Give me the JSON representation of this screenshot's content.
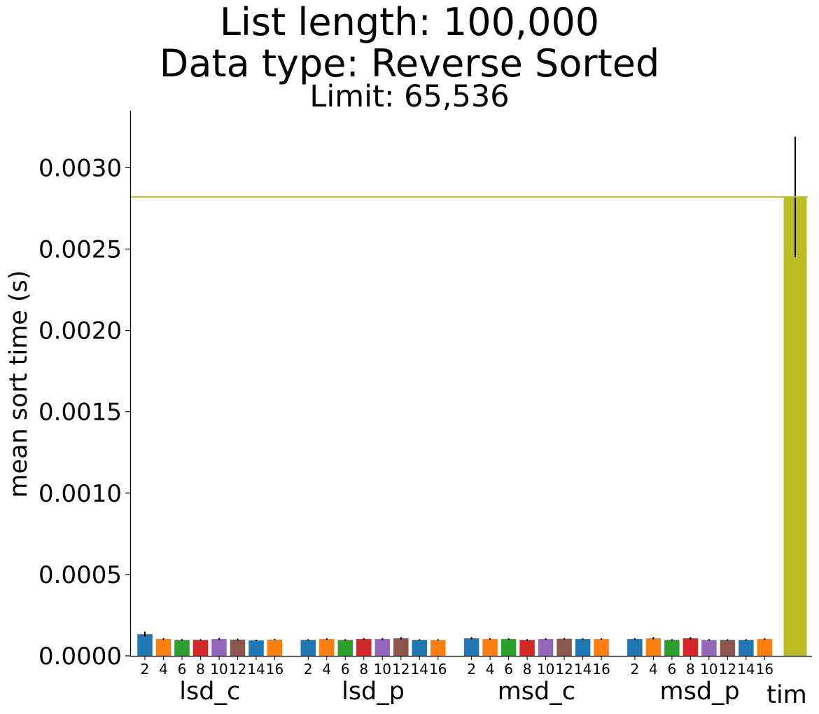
{
  "chart_data": {
    "type": "bar",
    "title": "List length: 100,000",
    "subtitle": "Data type: Reverse Sorted",
    "limit_label": "Limit: 65,536",
    "ylabel": "mean sort time (s)",
    "ylim": [
      0,
      0.00335
    ],
    "yticks": [
      0.0,
      0.0005,
      0.001,
      0.0015,
      0.002,
      0.0025,
      0.003
    ],
    "ytick_labels": [
      "0.0000",
      "0.0005",
      "0.0010",
      "0.0015",
      "0.0020",
      "0.0025",
      "0.0030"
    ],
    "palette": [
      "#1f77b4",
      "#ff7f0e",
      "#2ca02c",
      "#d62728",
      "#9467bd",
      "#8c564b"
    ],
    "groups": [
      {
        "name": "lsd_c",
        "categories": [
          "2",
          "4",
          "6",
          "8",
          "10",
          "12",
          "14",
          "16"
        ],
        "values": [
          0.000133,
          0.000103,
          9.8e-05,
          9.8e-05,
          0.000103,
          0.0001,
          9.5e-05,
          0.0001
        ],
        "errors": [
          1.5e-05,
          6e-06,
          4e-06,
          4e-06,
          6e-06,
          6e-06,
          4e-06,
          4e-06
        ]
      },
      {
        "name": "lsd_p",
        "categories": [
          "2",
          "4",
          "6",
          "8",
          "10",
          "12",
          "14",
          "16"
        ],
        "values": [
          9.8e-05,
          0.000103,
          9.8e-05,
          0.000103,
          0.000103,
          0.000108,
          9.8e-05,
          9.8e-05
        ],
        "errors": [
          4e-06,
          5e-06,
          4e-06,
          6e-06,
          6e-06,
          7e-06,
          4e-06,
          4e-06
        ]
      },
      {
        "name": "msd_c",
        "categories": [
          "2",
          "4",
          "6",
          "8",
          "10",
          "12",
          "14",
          "16"
        ],
        "values": [
          0.000108,
          0.000103,
          0.000103,
          9.8e-05,
          0.000103,
          0.000105,
          0.000103,
          0.000103
        ],
        "errors": [
          7e-06,
          5e-06,
          5e-06,
          4e-06,
          5e-06,
          4e-06,
          5e-06,
          5e-06
        ]
      },
      {
        "name": "msd_p",
        "categories": [
          "2",
          "4",
          "6",
          "8",
          "10",
          "12",
          "14",
          "16"
        ],
        "values": [
          0.000103,
          0.000108,
          9.8e-05,
          0.000108,
          9.8e-05,
          9.8e-05,
          9.8e-05,
          0.000103
        ],
        "errors": [
          5e-06,
          7e-06,
          4e-06,
          7e-06,
          4e-06,
          4e-06,
          4e-06,
          5e-06
        ]
      },
      {
        "name": "tim",
        "categories": [],
        "values": [
          0.00282
        ],
        "errors": [
          0.00037
        ],
        "color": "#bcbd22"
      }
    ],
    "reference_line": {
      "value": 0.00282,
      "color": "#bcbd22"
    }
  }
}
